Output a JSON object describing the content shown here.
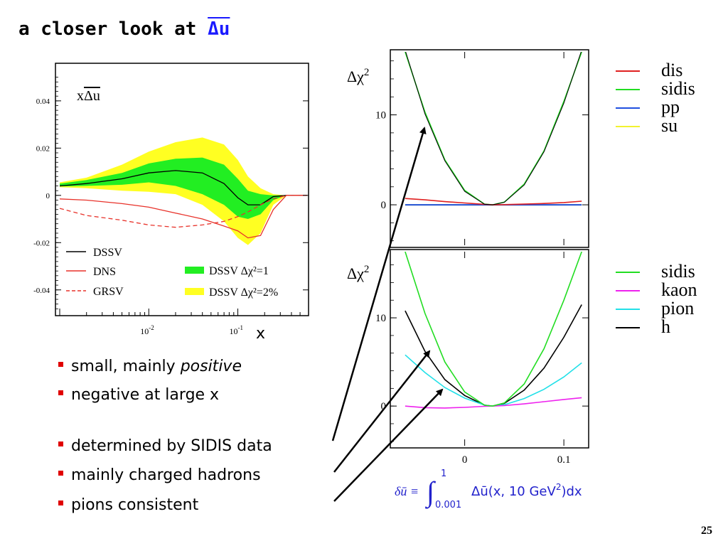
{
  "slide": {
    "title_prefix": "a closer look at ",
    "title_symbol": "Δu",
    "page_number": "25",
    "bullets": [
      {
        "pre": "small, mainly ",
        "em": "positive",
        "post": ""
      },
      {
        "pre": "negative at large x",
        "em": "",
        "post": ""
      },
      {
        "pre": "determined by SIDIS data",
        "em": "",
        "post": ""
      },
      {
        "pre": "mainly charged hadrons",
        "em": "",
        "post": ""
      },
      {
        "pre": "pions consistent",
        "em": "",
        "post": ""
      }
    ],
    "formula": {
      "lhs": "δū ≡",
      "lower": "0.001",
      "upper": "1",
      "integrand": "Δū(x, 10 GeV",
      "exp": "2",
      "tail": ")dx"
    }
  },
  "colors": {
    "dssv": "#000000",
    "dns": "#e8322a",
    "grsv": "#e8322a",
    "band1": "#22ee22",
    "band2": "#ffff22",
    "dis": "#e02020",
    "sidis": "#22dd22",
    "pp": "#2050e0",
    "su": "#f2f230",
    "kaon": "#ee22ee",
    "pion": "#22e0e8",
    "h": "#000000",
    "accent_title": "#1a1aff",
    "bullet": "#e00000",
    "formula": "#2222cc"
  },
  "chart_data": [
    {
      "type": "area",
      "plot_label_x": "x",
      "plot_label_symbol": "Δu",
      "xlabel": "x",
      "x_scale": "log",
      "xlim": [
        0.001,
        0.6
      ],
      "ylim": [
        -0.05,
        0.055
      ],
      "x_ticks": [
        {
          "base": "10",
          "exp": "-2"
        },
        {
          "base": "10",
          "exp": "-1"
        }
      ],
      "y_ticks": [
        "0.04",
        "0.02",
        "0",
        "-0.02",
        "-0.04"
      ],
      "x": [
        0.001,
        0.002,
        0.005,
        0.01,
        0.02,
        0.04,
        0.07,
        0.1,
        0.13,
        0.18,
        0.25,
        0.35,
        0.5,
        0.6
      ],
      "series": [
        {
          "name": "DSSV",
          "style": "solid",
          "values": [
            0.004,
            0.005,
            0.007,
            0.0095,
            0.0105,
            0.0095,
            0.005,
            -0.001,
            -0.004,
            -0.004,
            -0.0005,
            0,
            0,
            0
          ]
        },
        {
          "name": "DNS",
          "style": "solid",
          "values": [
            -0.0015,
            -0.002,
            -0.0035,
            -0.005,
            -0.0075,
            -0.01,
            -0.013,
            -0.015,
            -0.018,
            -0.017,
            -0.006,
            0,
            0,
            0
          ]
        },
        {
          "name": "GRSV",
          "style": "dashed",
          "values": [
            -0.0055,
            -0.0085,
            -0.0105,
            -0.0125,
            -0.0135,
            -0.0125,
            -0.011,
            -0.009,
            -0.007,
            -0.004,
            -0.0015,
            0,
            0,
            0
          ]
        }
      ],
      "bands": [
        {
          "name": "DSSV Δχ²=2%",
          "lower": [
            0.0035,
            0.003,
            0.002,
            0.0015,
            0.0005,
            -0.004,
            -0.011,
            -0.018,
            -0.021,
            -0.016,
            -0.004,
            0,
            0,
            0
          ],
          "upper": [
            0.0055,
            0.0075,
            0.013,
            0.0185,
            0.0225,
            0.0245,
            0.0215,
            0.015,
            0.008,
            0.003,
            0.0005,
            0,
            0,
            0
          ]
        },
        {
          "name": "DSSV Δχ²=1",
          "lower": [
            0.0038,
            0.004,
            0.0045,
            0.0055,
            0.004,
            0.0005,
            -0.004,
            -0.009,
            -0.01,
            -0.008,
            -0.002,
            0,
            0,
            0
          ],
          "upper": [
            0.005,
            0.0065,
            0.0095,
            0.0135,
            0.0155,
            0.016,
            0.013,
            0.007,
            0.002,
            0.0005,
            0,
            0,
            0,
            0
          ]
        }
      ]
    },
    {
      "type": "line",
      "ylabel_base": "Δχ",
      "ylabel_exp": "2",
      "xlim": [
        -0.075,
        0.125
      ],
      "ylim": [
        -4.5,
        17
      ],
      "y_ticks": [
        "10",
        "0"
      ],
      "x": [
        -0.06,
        -0.04,
        -0.02,
        0,
        0.02,
        0.028,
        0.04,
        0.06,
        0.08,
        0.1,
        0.118
      ],
      "series": [
        {
          "name": "dis",
          "values": [
            0.7,
            0.55,
            0.35,
            0.2,
            0.05,
            0,
            0.02,
            0.08,
            0.15,
            0.25,
            0.4
          ]
        },
        {
          "name": "sidis",
          "values": [
            17,
            10.3,
            5,
            1.6,
            0.08,
            0,
            0.3,
            2.3,
            6,
            11.5,
            17
          ]
        },
        {
          "name": "pp",
          "values": [
            0,
            0,
            0,
            0,
            0,
            0,
            0,
            0,
            0,
            0,
            0
          ]
        },
        {
          "name": "su",
          "values": [
            0,
            0,
            0,
            0,
            0,
            0,
            0,
            0,
            0,
            0,
            0
          ]
        }
      ]
    },
    {
      "type": "line",
      "ylabel_base": "Δχ",
      "ylabel_exp": "2",
      "xlabel": "",
      "xlim": [
        -0.075,
        0.125
      ],
      "ylim": [
        -4.5,
        17.5
      ],
      "x_ticks": [
        "0",
        "0.1"
      ],
      "y_ticks": [
        "10",
        "0"
      ],
      "x": [
        -0.06,
        -0.04,
        -0.02,
        0,
        0.02,
        0.028,
        0.04,
        0.06,
        0.08,
        0.1,
        0.118
      ],
      "series": [
        {
          "name": "sidis",
          "values": [
            17.5,
            10.5,
            5,
            1.6,
            0.1,
            0,
            0.35,
            2.5,
            6.5,
            12,
            17.5
          ]
        },
        {
          "name": "kaon",
          "values": [
            0,
            -0.18,
            -0.22,
            -0.15,
            -0.03,
            0,
            0.05,
            0.25,
            0.5,
            0.75,
            0.95
          ]
        },
        {
          "name": "pion",
          "values": [
            5.8,
            3.8,
            2.1,
            0.9,
            0.1,
            0,
            0.15,
            0.85,
            1.9,
            3.3,
            4.9
          ]
        },
        {
          "name": "h",
          "values": [
            10.8,
            6.2,
            3,
            1.2,
            0.1,
            0,
            0.3,
            1.8,
            4.3,
            7.8,
            11.5
          ]
        }
      ]
    }
  ]
}
